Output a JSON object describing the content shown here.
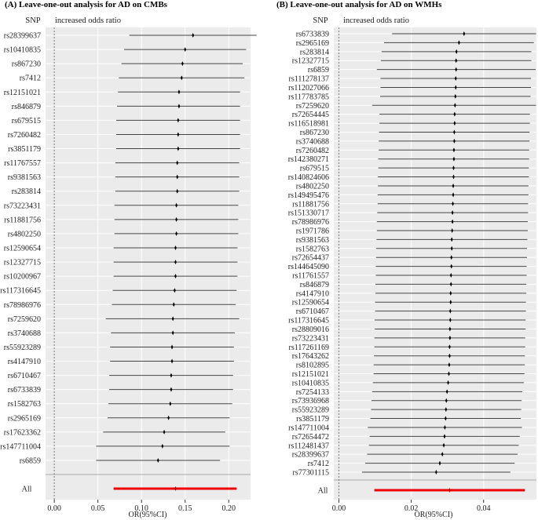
{
  "chart_data": [
    {
      "type": "forest",
      "title": "(A) Leave-one-out analysis for AD on CMBs",
      "column_header": "SNP",
      "effect_header": "increased odds ratio",
      "xlabel": "OR(95%CI)",
      "xlim": [
        -0.01,
        0.225
      ],
      "xticks": [
        "0.00",
        "0.05",
        "0.10",
        "0.15",
        "0.20"
      ],
      "xtick_values": [
        0.0,
        0.05,
        0.1,
        0.15,
        0.2
      ],
      "reference_line": 0,
      "colors": {
        "ci": "#444444",
        "point": "#000000",
        "overall": "#ee0000",
        "panel_bg": "#ebebeb",
        "grid": "#ffffff"
      },
      "rows": [
        {
          "snp": "rs28399637",
          "est": 0.159,
          "lo": 0.086,
          "hi": 0.232
        },
        {
          "snp": "rs10410835",
          "est": 0.15,
          "lo": 0.08,
          "hi": 0.22
        },
        {
          "snp": "rs867230",
          "est": 0.147,
          "lo": 0.077,
          "hi": 0.216
        },
        {
          "snp": "rs7412",
          "est": 0.146,
          "lo": 0.074,
          "hi": 0.218
        },
        {
          "snp": "rs12151021",
          "est": 0.143,
          "lo": 0.073,
          "hi": 0.213
        },
        {
          "snp": "rs846879",
          "est": 0.143,
          "lo": 0.072,
          "hi": 0.213
        },
        {
          "snp": "rs679515",
          "est": 0.142,
          "lo": 0.071,
          "hi": 0.213
        },
        {
          "snp": "rs7260482",
          "est": 0.142,
          "lo": 0.071,
          "hi": 0.213
        },
        {
          "snp": "rs3851179",
          "est": 0.142,
          "lo": 0.071,
          "hi": 0.213
        },
        {
          "snp": "rs11767557",
          "est": 0.141,
          "lo": 0.07,
          "hi": 0.212
        },
        {
          "snp": "rs9381563",
          "est": 0.141,
          "lo": 0.07,
          "hi": 0.212
        },
        {
          "snp": "rs283814",
          "est": 0.141,
          "lo": 0.07,
          "hi": 0.212
        },
        {
          "snp": "rs73223431",
          "est": 0.14,
          "lo": 0.069,
          "hi": 0.211
        },
        {
          "snp": "rs11881756",
          "est": 0.14,
          "lo": 0.069,
          "hi": 0.211
        },
        {
          "snp": "rs4802250",
          "est": 0.14,
          "lo": 0.069,
          "hi": 0.211
        },
        {
          "snp": "rs12590654",
          "est": 0.139,
          "lo": 0.068,
          "hi": 0.21
        },
        {
          "snp": "rs12327715",
          "est": 0.139,
          "lo": 0.068,
          "hi": 0.21
        },
        {
          "snp": "rs10200967",
          "est": 0.139,
          "lo": 0.068,
          "hi": 0.21
        },
        {
          "snp": "rs117316645",
          "est": 0.138,
          "lo": 0.067,
          "hi": 0.209
        },
        {
          "snp": "rs78986976",
          "est": 0.137,
          "lo": 0.066,
          "hi": 0.208
        },
        {
          "snp": "rs7259620",
          "est": 0.136,
          "lo": 0.059,
          "hi": 0.212
        },
        {
          "snp": "rs3740688",
          "est": 0.136,
          "lo": 0.065,
          "hi": 0.207
        },
        {
          "snp": "rs55923289",
          "est": 0.135,
          "lo": 0.064,
          "hi": 0.206
        },
        {
          "snp": "rs4147910",
          "est": 0.135,
          "lo": 0.064,
          "hi": 0.206
        },
        {
          "snp": "rs6710467",
          "est": 0.134,
          "lo": 0.063,
          "hi": 0.205
        },
        {
          "snp": "rs6733839",
          "est": 0.134,
          "lo": 0.063,
          "hi": 0.205
        },
        {
          "snp": "rs1582763",
          "est": 0.133,
          "lo": 0.062,
          "hi": 0.204
        },
        {
          "snp": "rs2965169",
          "est": 0.131,
          "lo": 0.061,
          "hi": 0.201
        },
        {
          "snp": "rs17623362",
          "est": 0.126,
          "lo": 0.056,
          "hi": 0.196
        },
        {
          "snp": "rs147711004",
          "est": 0.124,
          "lo": 0.048,
          "hi": 0.201
        },
        {
          "snp": "rs6859",
          "est": 0.119,
          "lo": 0.048,
          "hi": 0.19
        }
      ],
      "overall": {
        "label": "All",
        "est": 0.139,
        "lo": 0.068,
        "hi": 0.209
      }
    },
    {
      "type": "forest",
      "title": "(B) Leave-one-out analysis for AD on WMHs",
      "column_header": "SNP",
      "effect_header": "increased odds ratio",
      "xlabel": "OR(95%CI)",
      "xlim": [
        -0.0014,
        0.0546
      ],
      "xticks": [
        "0.00",
        "0.02",
        "0.04"
      ],
      "xtick_values": [
        0.0,
        0.02,
        0.04
      ],
      "reference_line": 0,
      "colors": {
        "ci": "#444444",
        "point": "#000000",
        "overall": "#ee0000",
        "panel_bg": "#ebebeb",
        "grid": "#ffffff"
      },
      "rows": [
        {
          "snp": "rs6733839",
          "est": 0.0346,
          "lo": 0.0147,
          "hi": 0.0545
        },
        {
          "snp": "rs2965169",
          "est": 0.0332,
          "lo": 0.0125,
          "hi": 0.0539
        },
        {
          "snp": "rs283814",
          "est": 0.0325,
          "lo": 0.0118,
          "hi": 0.0532
        },
        {
          "snp": "rs12327715",
          "est": 0.0324,
          "lo": 0.0116,
          "hi": 0.0532
        },
        {
          "snp": "rs6859",
          "est": 0.0324,
          "lo": 0.0105,
          "hi": 0.0544
        },
        {
          "snp": "rs111278137",
          "est": 0.0323,
          "lo": 0.0115,
          "hi": 0.0531
        },
        {
          "snp": "rs112027066",
          "est": 0.0323,
          "lo": 0.0115,
          "hi": 0.0531
        },
        {
          "snp": "rs117783785",
          "est": 0.0322,
          "lo": 0.0114,
          "hi": 0.053
        },
        {
          "snp": "rs7259620",
          "est": 0.0321,
          "lo": 0.0092,
          "hi": 0.0545
        },
        {
          "snp": "rs72654445",
          "est": 0.032,
          "lo": 0.0112,
          "hi": 0.0528
        },
        {
          "snp": "rs116518981",
          "est": 0.032,
          "lo": 0.0112,
          "hi": 0.0528
        },
        {
          "snp": "rs867230",
          "est": 0.0319,
          "lo": 0.0111,
          "hi": 0.0527
        },
        {
          "snp": "rs3740688",
          "est": 0.0319,
          "lo": 0.011,
          "hi": 0.0527
        },
        {
          "snp": "rs7260482",
          "est": 0.0318,
          "lo": 0.011,
          "hi": 0.0526
        },
        {
          "snp": "rs142380271",
          "est": 0.0318,
          "lo": 0.0109,
          "hi": 0.0526
        },
        {
          "snp": "rs679515",
          "est": 0.0317,
          "lo": 0.0109,
          "hi": 0.0525
        },
        {
          "snp": "rs140824606",
          "est": 0.0317,
          "lo": 0.0108,
          "hi": 0.0525
        },
        {
          "snp": "rs4802250",
          "est": 0.0316,
          "lo": 0.0108,
          "hi": 0.0524
        },
        {
          "snp": "rs149495476",
          "est": 0.0316,
          "lo": 0.0107,
          "hi": 0.0524
        },
        {
          "snp": "rs11881756",
          "est": 0.0315,
          "lo": 0.0107,
          "hi": 0.0523
        },
        {
          "snp": "rs151330717",
          "est": 0.0314,
          "lo": 0.0106,
          "hi": 0.0523
        },
        {
          "snp": "rs78986976",
          "est": 0.0314,
          "lo": 0.0105,
          "hi": 0.0522
        },
        {
          "snp": "rs1971786",
          "est": 0.0313,
          "lo": 0.0105,
          "hi": 0.0522
        },
        {
          "snp": "rs9381563",
          "est": 0.0312,
          "lo": 0.0104,
          "hi": 0.0521
        },
        {
          "snp": "rs1582763",
          "est": 0.0312,
          "lo": 0.0103,
          "hi": 0.052
        },
        {
          "snp": "rs72654437",
          "est": 0.0311,
          "lo": 0.0103,
          "hi": 0.052
        },
        {
          "snp": "rs144645090",
          "est": 0.0311,
          "lo": 0.0102,
          "hi": 0.0519
        },
        {
          "snp": "rs11761557",
          "est": 0.031,
          "lo": 0.0102,
          "hi": 0.0519
        },
        {
          "snp": "rs846879",
          "est": 0.031,
          "lo": 0.0101,
          "hi": 0.0518
        },
        {
          "snp": "rs4147910",
          "est": 0.0309,
          "lo": 0.0101,
          "hi": 0.0518
        },
        {
          "snp": "rs12590654",
          "est": 0.0309,
          "lo": 0.01,
          "hi": 0.0517
        },
        {
          "snp": "rs6710467",
          "est": 0.0308,
          "lo": 0.01,
          "hi": 0.0517
        },
        {
          "snp": "rs117316645",
          "est": 0.0308,
          "lo": 0.0099,
          "hi": 0.0516
        },
        {
          "snp": "rs28809016",
          "est": 0.0307,
          "lo": 0.0099,
          "hi": 0.0516
        },
        {
          "snp": "rs73223431",
          "est": 0.0307,
          "lo": 0.0098,
          "hi": 0.0515
        },
        {
          "snp": "rs117261169",
          "est": 0.0306,
          "lo": 0.0098,
          "hi": 0.0515
        },
        {
          "snp": "rs17643262",
          "est": 0.0306,
          "lo": 0.0097,
          "hi": 0.0514
        },
        {
          "snp": "rs8102895",
          "est": 0.0305,
          "lo": 0.0096,
          "hi": 0.0514
        },
        {
          "snp": "rs12151021",
          "est": 0.0304,
          "lo": 0.0096,
          "hi": 0.0513
        },
        {
          "snp": "rs10410835",
          "est": 0.0302,
          "lo": 0.0094,
          "hi": 0.0511
        },
        {
          "snp": "rs7254133",
          "est": 0.0299,
          "lo": 0.0092,
          "hi": 0.0507
        },
        {
          "snp": "rs73936968",
          "est": 0.0297,
          "lo": 0.009,
          "hi": 0.0505
        },
        {
          "snp": "rs55923289",
          "est": 0.0296,
          "lo": 0.0089,
          "hi": 0.0504
        },
        {
          "snp": "rs3851179",
          "est": 0.0295,
          "lo": 0.0087,
          "hi": 0.0503
        },
        {
          "snp": "rs147711004",
          "est": 0.0293,
          "lo": 0.008,
          "hi": 0.0506
        },
        {
          "snp": "rs72654472",
          "est": 0.0292,
          "lo": 0.0085,
          "hi": 0.05
        },
        {
          "snp": "rs112481437",
          "est": 0.029,
          "lo": 0.0083,
          "hi": 0.0497
        },
        {
          "snp": "rs28399637",
          "est": 0.0286,
          "lo": 0.0078,
          "hi": 0.0494
        },
        {
          "snp": "rs7412",
          "est": 0.0279,
          "lo": 0.0073,
          "hi": 0.0486
        },
        {
          "snp": "rs77301115",
          "est": 0.0269,
          "lo": 0.0064,
          "hi": 0.0474
        }
      ],
      "overall": {
        "label": "All",
        "est": 0.0306,
        "lo": 0.0098,
        "hi": 0.0514
      }
    }
  ]
}
